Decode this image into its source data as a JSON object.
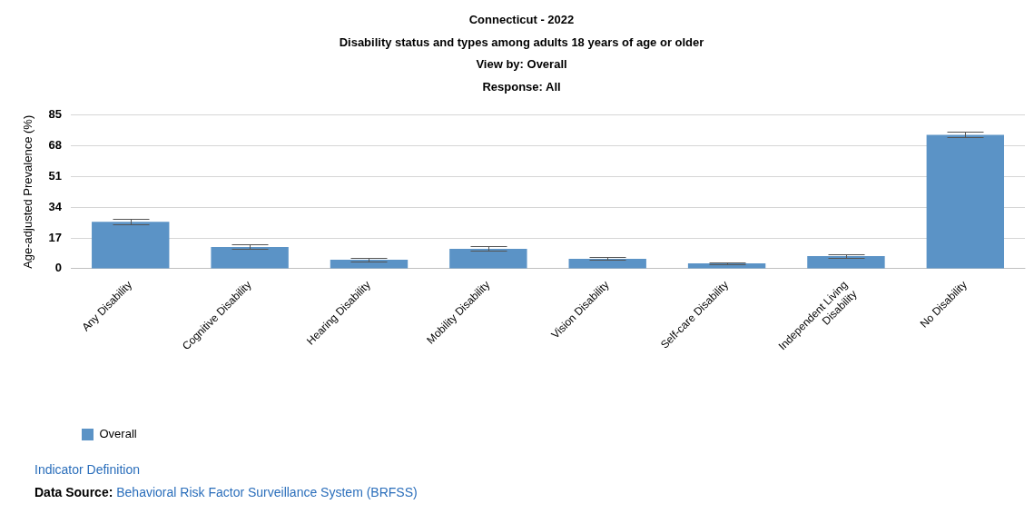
{
  "chart_data": {
    "type": "bar",
    "title": "Connecticut - 2022",
    "subtitle": "Disability status and types among adults 18 years of age or older\nView by: Overall\nResponse: All",
    "ylabel": "Age-adjusted Prevalence (%)",
    "categories": [
      "Any Disability",
      "Cognitive Disability",
      "Hearing Disability",
      "Mobility Disability",
      "Vision Disability",
      "Self-care Disability",
      "Independent Living Disability",
      "No Disability"
    ],
    "series": [
      {
        "name": "Overall",
        "color": "#5b93c6",
        "values": [
          26,
          12,
          5,
          11,
          5.5,
          3,
          7,
          74
        ],
        "errors": [
          [
            24.5,
            27.5
          ],
          [
            11,
            13.5
          ],
          [
            4.2,
            5.8
          ],
          [
            10,
            12.5
          ],
          [
            4.8,
            6.5
          ],
          [
            2.5,
            3.5
          ],
          [
            6,
            8
          ],
          [
            73,
            76
          ]
        ]
      }
    ],
    "ylim": [
      0,
      85
    ],
    "yticks": [
      0,
      17,
      34,
      51,
      68,
      85
    ],
    "grid": "y",
    "legend": "bottom left",
    "annotations": [
      "Indicator Definition",
      "Data Source: Behavioral Risk Factor Surveillance System (BRFSS)"
    ]
  }
}
